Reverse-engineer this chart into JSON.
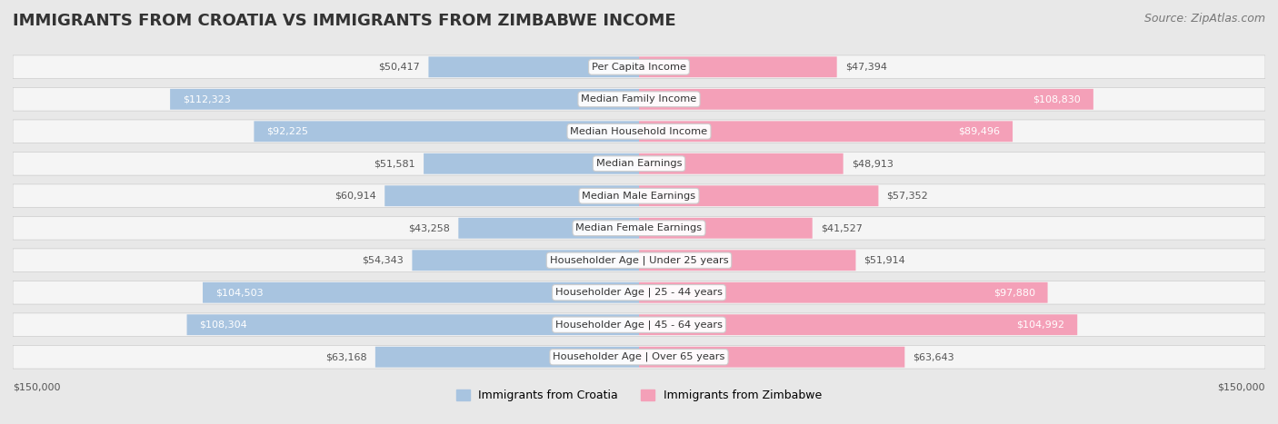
{
  "title": "IMMIGRANTS FROM CROATIA VS IMMIGRANTS FROM ZIMBABWE INCOME",
  "source": "Source: ZipAtlas.com",
  "categories": [
    "Per Capita Income",
    "Median Family Income",
    "Median Household Income",
    "Median Earnings",
    "Median Male Earnings",
    "Median Female Earnings",
    "Householder Age | Under 25 years",
    "Householder Age | 25 - 44 years",
    "Householder Age | 45 - 64 years",
    "Householder Age | Over 65 years"
  ],
  "croatia_values": [
    50417,
    112323,
    92225,
    51581,
    60914,
    43258,
    54343,
    104503,
    108304,
    63168
  ],
  "zimbabwe_values": [
    47394,
    108830,
    89496,
    48913,
    57352,
    41527,
    51914,
    97880,
    104992,
    63643
  ],
  "croatia_color": "#a8c4e0",
  "zimbabwe_color": "#f4a0b8",
  "croatia_label": "Immigrants from Croatia",
  "zimbabwe_label": "Immigrants from Zimbabwe",
  "max_value": 150000,
  "bg_color": "#f0f0f0",
  "row_bg_color": "#f8f8f8",
  "title_fontsize": 13,
  "source_fontsize": 9,
  "label_fontsize": 8.5,
  "value_fontsize": 8,
  "axis_label": "$150,000",
  "croatia_label_colors": [
    "#555555",
    "#ffffff",
    "#ffffff",
    "#555555",
    "#555555",
    "#555555",
    "#555555",
    "#ffffff",
    "#ffffff",
    "#555555"
  ],
  "zimbabwe_label_colors": [
    "#555555",
    "#ffffff",
    "#ffffff",
    "#555555",
    "#555555",
    "#555555",
    "#555555",
    "#ffffff",
    "#ffffff",
    "#555555"
  ]
}
